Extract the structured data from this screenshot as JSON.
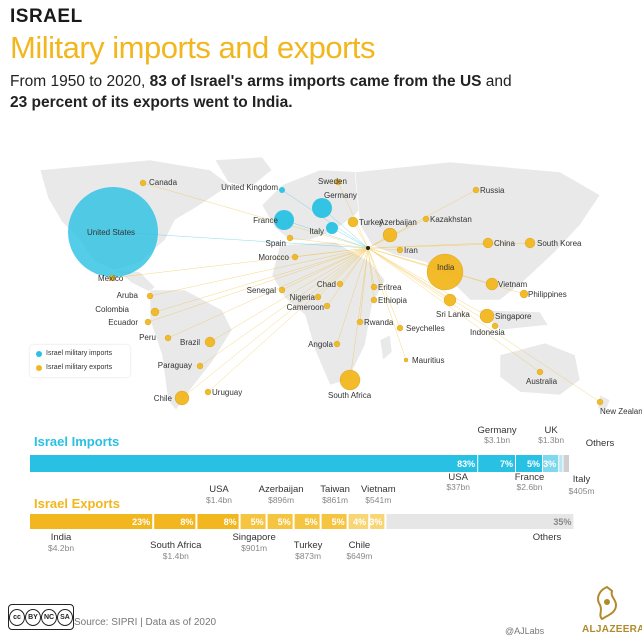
{
  "header": {
    "kicker": "ISRAEL",
    "title": "Military imports and exports",
    "subtitle_parts": [
      "From 1950 to 2020, ",
      "83 of Israel's arms imports came from the US",
      " and ",
      "23 percent of its exports went to India."
    ]
  },
  "legend": {
    "imports": "Israel military imports",
    "exports": "Israel military exports"
  },
  "colors": {
    "imports": "#29c1e3",
    "exports": "#f2b61e",
    "others": "#e6e6e6",
    "land": "#e8e8e8"
  },
  "map_labels": [
    "Canada",
    "United States",
    "Mexico",
    "Aruba",
    "Colombia",
    "Ecuador",
    "Peru",
    "Brazil",
    "Paraguay",
    "Chile",
    "Uruguay",
    "United Kingdom",
    "Sweden",
    "Germany",
    "France",
    "Spain",
    "Italy",
    "Turkey",
    "Azerbaijan",
    "Russia",
    "Kazakhstan",
    "Iran",
    "China",
    "South Korea",
    "India",
    "Vietnam",
    "Philippines",
    "Singapore",
    "Indonesia",
    "Sri Lanka",
    "Morocco",
    "Senegal",
    "Nigeria",
    "Cameroon",
    "Chad",
    "Eritrea",
    "Ethiopia",
    "Rwanda",
    "Seychelles",
    "Angola",
    "Mauritius",
    "South Africa",
    "Australia",
    "New Zealand"
  ],
  "chart_data": [
    {
      "type": "bar",
      "title": "Israel Imports",
      "categories": [
        "USA",
        "Germany",
        "France",
        "UK",
        "Italy",
        "Others"
      ],
      "percent": [
        83,
        7,
        5,
        3,
        null,
        null
      ],
      "value_labels": [
        "$37bn",
        "$3.1bn",
        "$2.6bn",
        "$1.3bn",
        "$405m",
        ""
      ],
      "values_usd_bn": [
        37,
        3.1,
        2.6,
        1.3,
        0.405,
        null
      ]
    },
    {
      "type": "bar",
      "title": "Israel Exports",
      "categories": [
        "India",
        "South Africa",
        "USA",
        "Singapore",
        "Azerbaijan",
        "Turkey",
        "Taiwan",
        "Chile",
        "Vietnam",
        "Others"
      ],
      "percent": [
        23,
        8,
        8,
        5,
        5,
        5,
        5,
        4,
        3,
        35
      ],
      "value_labels": [
        "$4.2bn",
        "$1.4bn",
        "$1.4bn",
        "$901m",
        "$896m",
        "$873m",
        "$861m",
        "$649m",
        "$541m",
        ""
      ],
      "values_usd_bn": [
        4.2,
        1.4,
        1.4,
        0.901,
        0.896,
        0.873,
        0.861,
        0.649,
        0.541,
        null
      ]
    }
  ],
  "footer": {
    "cc_marks": [
      "cc",
      "BY",
      "NC",
      "SA"
    ],
    "source": "Source: SIPRI | Data as of 2020",
    "credit": "@AJLabs",
    "brand": "ALJAZEERA"
  }
}
